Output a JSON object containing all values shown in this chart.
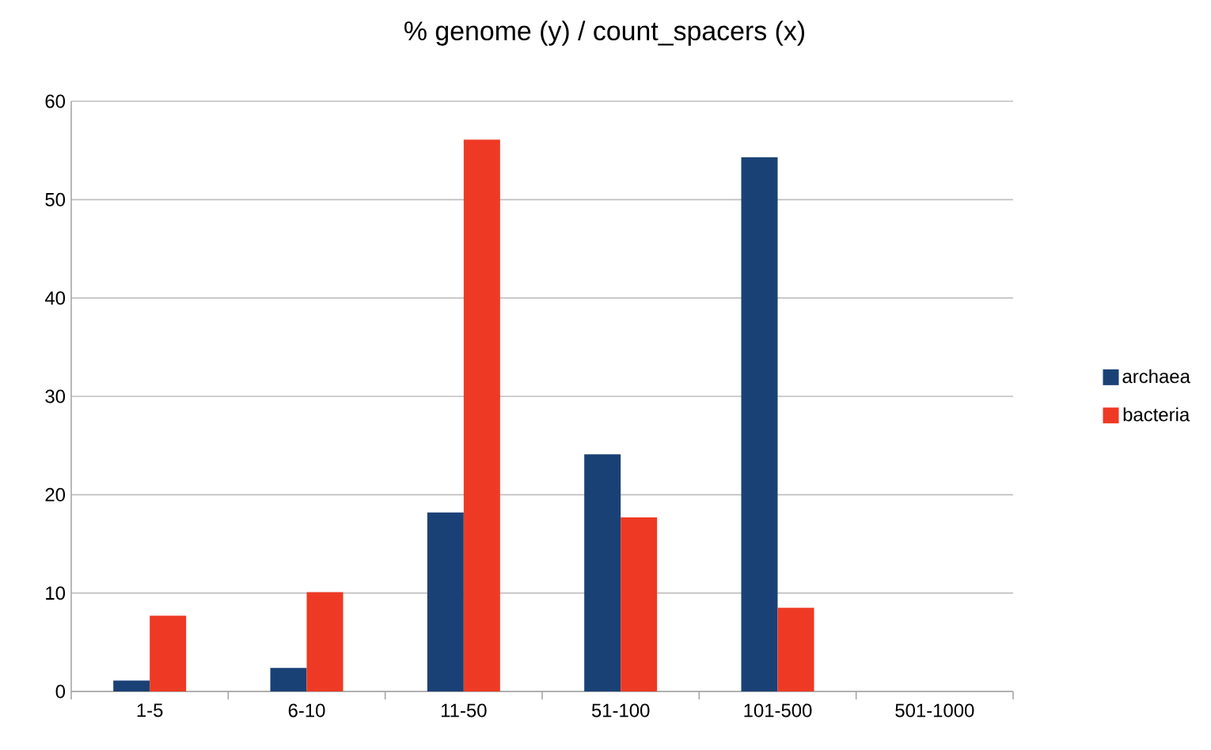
{
  "chart_data": {
    "type": "bar",
    "title": "% genome (y) / count_spacers (x)",
    "categories": [
      "1-5",
      "6-10",
      "11-50",
      "51-100",
      "101-500",
      "501-1000"
    ],
    "series": [
      {
        "name": "archaea",
        "color": "#1a4176",
        "values": [
          1.1,
          2.4,
          18.2,
          24.1,
          54.3,
          0
        ]
      },
      {
        "name": "bacteria",
        "color": "#ee3a24",
        "values": [
          7.7,
          10.1,
          56.1,
          17.7,
          8.5,
          0
        ]
      }
    ],
    "ylim": [
      0,
      60
    ],
    "yticks": [
      0,
      10,
      20,
      30,
      40,
      50,
      60
    ],
    "grid": "y",
    "legend": "right"
  }
}
